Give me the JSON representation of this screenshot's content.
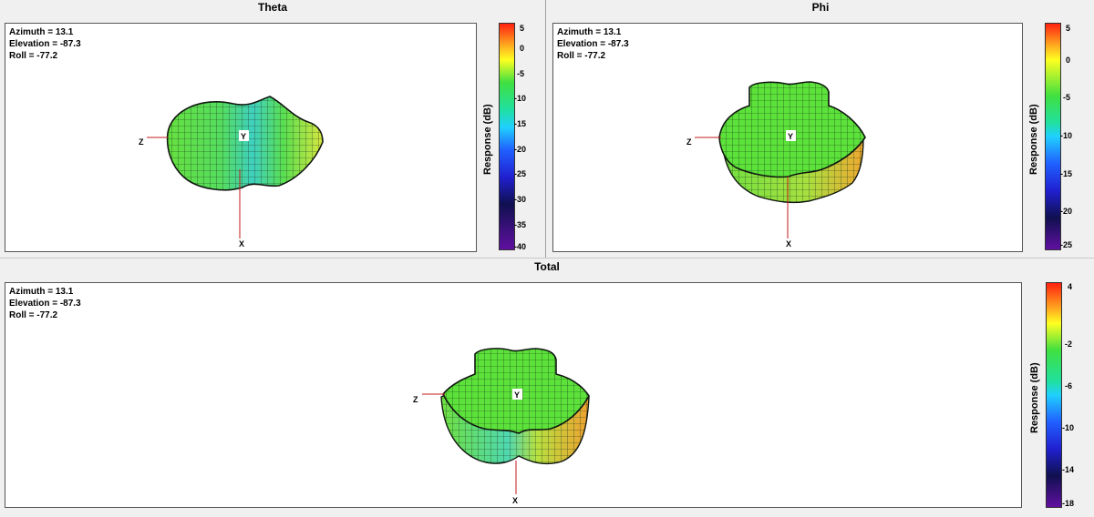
{
  "panels": {
    "theta": {
      "title": "Theta",
      "azimuth": "Azimuth = 13.1",
      "elevation": "Elevation = -87.3",
      "roll": "Roll = -77.2",
      "colorbar_label": "Response  (dB)",
      "colorbar_ticks": [
        "5",
        "0",
        "-5",
        "-10",
        "-15",
        "-20",
        "-25",
        "-30",
        "-35",
        "-40"
      ],
      "axis_labels": {
        "y": "Y",
        "z": "Z",
        "x": "X"
      }
    },
    "phi": {
      "title": "Phi",
      "azimuth": "Azimuth = 13.1",
      "elevation": "Elevation = -87.3",
      "roll": "Roll = -77.2",
      "colorbar_label": "Response  (dB)",
      "colorbar_ticks": [
        "5",
        "0",
        "-5",
        "-10",
        "-15",
        "-20",
        "-25"
      ],
      "axis_labels": {
        "y": "Y",
        "z": "Z",
        "x": "X"
      }
    },
    "total": {
      "title": "Total",
      "azimuth": "Azimuth = 13.1",
      "elevation": "Elevation = -87.3",
      "roll": "Roll = -77.2",
      "colorbar_label": "Response  (dB)",
      "colorbar_ticks": [
        "4",
        "-2",
        "-6",
        "-10",
        "-14",
        "-18"
      ],
      "axis_labels": {
        "y": "Y",
        "z": "Z",
        "x": "X"
      }
    }
  },
  "colors": {
    "surface_main": "#5ee83a",
    "surface_cyan": "#3fd9b0",
    "surface_yellow": "#e8e23a",
    "surface_orange": "#f0a030",
    "axis_line": "#c01818",
    "mesh": "#102010"
  }
}
